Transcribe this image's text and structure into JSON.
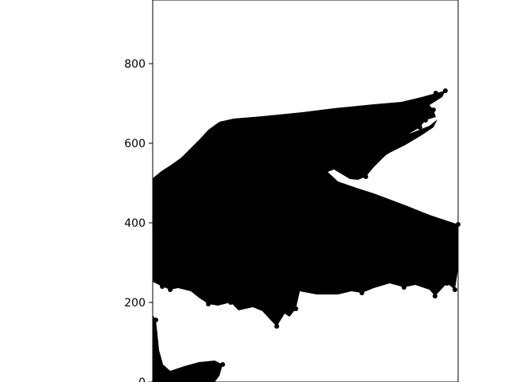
{
  "chart_data": {
    "type": "scatter",
    "title": "",
    "xlabel": "",
    "ylabel": "",
    "ylim": [
      0,
      960
    ],
    "yticks": [
      0,
      200,
      400,
      600,
      800
    ],
    "ytick_labels": [
      "0",
      "200",
      "400",
      "600",
      "800"
    ],
    "xticks": [],
    "grid": false,
    "legend": "none",
    "marker_color": "#000000",
    "background": "#ffffff",
    "series": [
      {
        "shape": "bird-wing-silhouette",
        "outline_y_values": [
          510,
          560,
          600,
          640,
          660,
          670,
          680,
          690,
          700,
          710,
          730,
          700,
          650,
          600,
          560,
          520,
          480,
          450,
          430,
          400,
          360,
          300,
          260,
          230,
          230,
          260,
          230,
          200,
          180,
          150,
          180,
          200,
          230,
          250
        ]
      },
      {
        "shape": "lower-left-fragment",
        "outline_y_values": [
          160,
          100,
          50,
          20,
          0,
          40,
          50,
          30,
          0
        ]
      }
    ]
  }
}
